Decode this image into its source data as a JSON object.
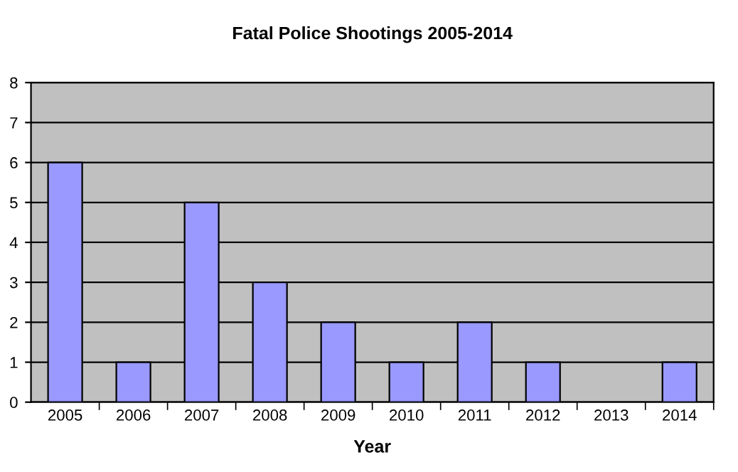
{
  "chart_data": {
    "type": "bar",
    "title": "Fatal Police Shootings 2005-2014",
    "xlabel": "Year",
    "categories": [
      "2005",
      "2006",
      "2007",
      "2008",
      "2009",
      "2010",
      "2011",
      "2012",
      "2013",
      "2014"
    ],
    "values": [
      6,
      1,
      5,
      3,
      2,
      1,
      2,
      1,
      0,
      1
    ],
    "color": "#9999ff",
    "ylim": [
      0,
      8
    ],
    "yticks": [
      0,
      1,
      2,
      3,
      4,
      5,
      6,
      7,
      8
    ],
    "grid": "y",
    "legend": false
  }
}
